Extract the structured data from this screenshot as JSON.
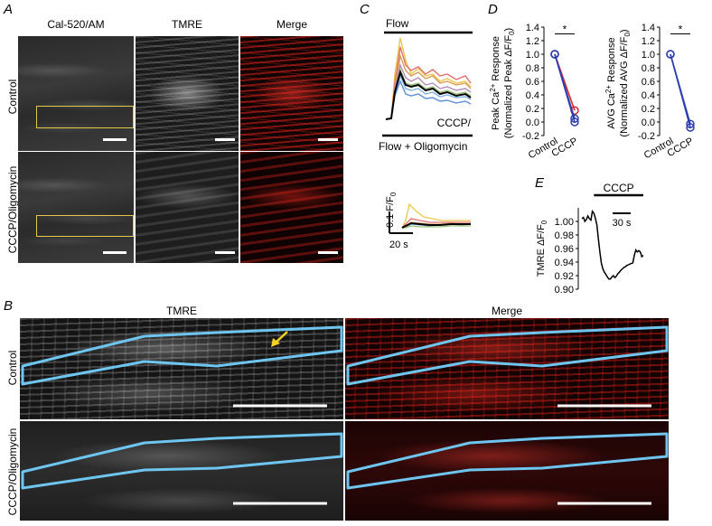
{
  "panels": {
    "A": {
      "label": "A",
      "columns": [
        "Cal-520/AM",
        "TMRE",
        "Merge"
      ],
      "rows": [
        "Control",
        "CCCP/Oligomycin"
      ]
    },
    "B": {
      "label": "B",
      "columns": [
        "TMRE",
        "Merge"
      ],
      "rows": [
        "Control",
        "CCCP/Oligomycin"
      ]
    },
    "C": {
      "label": "C",
      "flow_label": "Flow",
      "treatment_label_line1": "CCCP/",
      "treatment_label_line2": "Flow + Oligomycin",
      "scale_y": "0.1 F/F",
      "scale_y_sub": "0",
      "scale_x": "20 s"
    },
    "D": {
      "label": "D"
    },
    "E": {
      "label": "E"
    }
  },
  "colors": {
    "highlight_box": "#e3c84a",
    "cell_outline": "#6ec6f0",
    "arrow": "#f4d21f",
    "control_marker": "#2b3fb0",
    "cccp_marker_red": "#d9262b"
  },
  "chart_data": [
    {
      "type": "line",
      "panel": "C",
      "title": "",
      "notes": "Traces of normalized Cal-520 fluorescence (F/F0) during flow; upper set control cells, lower set CCCP/Oligomycin cells",
      "series": []
    },
    {
      "type": "scatter",
      "panel": "D-left",
      "ylabel": "Peak Ca2+ Response (Normalized Peak ΔF/F0)",
      "ylabel_line1": "Peak Ca",
      "ylabel_sup": "2+",
      "ylabel_line1_rest": " Response",
      "ylabel_line2": "(Normalized Peak ΔF/F",
      "ylabel_line2_sub": "0",
      "ylabel_line2_end": ")",
      "categories": [
        "Control",
        "CCCP"
      ],
      "ylim": [
        -0.2,
        1.4
      ],
      "yticks": [
        "-0.2",
        "0.0",
        "0.2",
        "0.4",
        "0.6",
        "0.8",
        "1.0",
        "1.2",
        "1.4"
      ],
      "significance": "*",
      "series": [
        {
          "values": [
            1.0,
            0.17
          ],
          "color": "#d9262b"
        },
        {
          "values": [
            1.0,
            0.05
          ],
          "color": "#2b3fb0"
        },
        {
          "values": [
            1.0,
            0.0
          ],
          "color": "#2b3fb0"
        }
      ]
    },
    {
      "type": "scatter",
      "panel": "D-right",
      "ylabel": "AVG Ca2+ Response (Normalized AVG ΔF/F0)",
      "ylabel_line1": "AVG Ca",
      "ylabel_sup": "2+",
      "ylabel_line1_rest": " Response",
      "ylabel_line2": "(Normalized AVG ΔF/F",
      "ylabel_line2_sub": "0",
      "ylabel_line2_end": ")",
      "categories": [
        "Control",
        "CCCP"
      ],
      "ylim": [
        -0.2,
        1.4
      ],
      "yticks": [
        "-0.2",
        "0.0",
        "0.2",
        "0.4",
        "0.6",
        "0.8",
        "1.0",
        "1.2",
        "1.4"
      ],
      "significance": "*",
      "series": [
        {
          "values": [
            1.0,
            -0.03
          ],
          "color": "#2b3fb0"
        },
        {
          "values": [
            1.0,
            -0.08
          ],
          "color": "#2b3fb0"
        }
      ]
    },
    {
      "type": "line",
      "panel": "E",
      "ylabel": "TMRE ΔF/F0",
      "ylabel_main": "TMRE ΔF/F",
      "ylabel_sub": "0",
      "ylim": [
        0.9,
        1.02
      ],
      "yticks": [
        "0.90",
        "0.92",
        "0.94",
        "0.96",
        "0.98",
        "1.00"
      ],
      "treatment_label": "CCCP",
      "time_scale_label": "30 s",
      "x": [
        0,
        2,
        4,
        6,
        8,
        10,
        12,
        14,
        16,
        18,
        20,
        22,
        24,
        26,
        28,
        30,
        32,
        34,
        36,
        38,
        40,
        42,
        44,
        46,
        48,
        50,
        52,
        54,
        56,
        58,
        60,
        62,
        64,
        66,
        68,
        70,
        72,
        74,
        76,
        78,
        80,
        82
      ],
      "values": [
        1.004,
        1.006,
        1.0,
        1.003,
        1.008,
        1.004,
        1.002,
        1.015,
        1.012,
        1.005,
        0.995,
        0.975,
        0.955,
        0.938,
        0.93,
        0.925,
        0.922,
        0.918,
        0.915,
        0.915,
        0.918,
        0.92,
        0.917,
        0.919,
        0.923,
        0.925,
        0.928,
        0.93,
        0.932,
        0.933,
        0.935,
        0.936,
        0.937,
        0.938,
        0.939,
        0.95,
        0.958,
        0.955,
        0.957,
        0.955,
        0.948,
        0.95
      ]
    }
  ]
}
